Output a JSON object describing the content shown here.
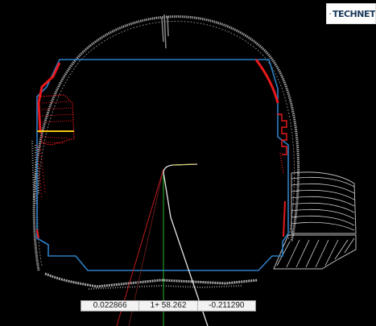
{
  "app": {
    "logo_text": "TECHNET"
  },
  "scene": {
    "background": "#000000",
    "colors": {
      "pointcloud": "#9c9c9c",
      "design_profile": "#2e7fc4",
      "overbreak": "#e8191c",
      "underbreak_marker": "#f2c20c",
      "axis_vertical": "#27b827",
      "axis_red": "#c0191c",
      "measure_line": "#e6e6e6"
    }
  },
  "readout": {
    "value_left": "0.022866",
    "station": "1+ 58.262",
    "value_right": "-0.211290"
  }
}
